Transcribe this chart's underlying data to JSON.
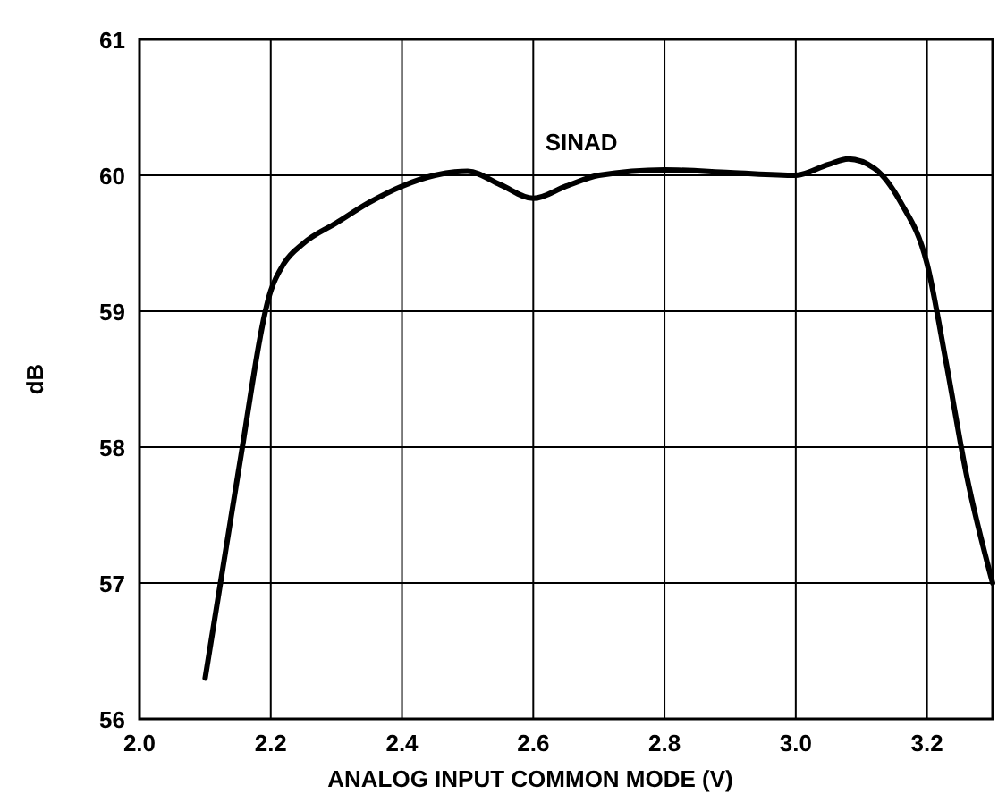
{
  "chart_data": {
    "type": "line",
    "xlabel": "ANALOG INPUT COMMON MODE (V)",
    "ylabel": "dB",
    "xlim": [
      2.0,
      3.3
    ],
    "xticks": [
      {
        "value": 2.0,
        "label": "2.0"
      },
      {
        "value": 2.2,
        "label": "2.2"
      },
      {
        "value": 2.4,
        "label": "2.4"
      },
      {
        "value": 2.6,
        "label": "2.6"
      },
      {
        "value": 2.8,
        "label": "2.8"
      },
      {
        "value": 3.0,
        "label": "3.0"
      },
      {
        "value": 3.2,
        "label": "3.2"
      }
    ],
    "ylim": [
      56,
      61
    ],
    "yticks": [
      56,
      57,
      58,
      59,
      60,
      61
    ],
    "grid": true,
    "legend": false,
    "series": [
      {
        "name": "SINAD",
        "color": "#000000",
        "x": [
          2.1,
          2.15,
          2.2,
          2.22,
          2.25,
          2.3,
          2.35,
          2.4,
          2.45,
          2.5,
          2.55,
          2.6,
          2.65,
          2.7,
          2.8,
          2.9,
          3.0,
          3.05,
          3.08,
          3.12,
          3.16,
          3.2,
          3.23,
          3.26,
          3.3
        ],
        "values": [
          56.3,
          57.8,
          59.15,
          59.35,
          59.5,
          59.65,
          59.8,
          59.92,
          60.0,
          60.03,
          59.93,
          59.83,
          59.92,
          60.0,
          60.04,
          60.02,
          60.0,
          60.08,
          60.12,
          60.05,
          59.8,
          59.35,
          58.6,
          57.8,
          57.0
        ]
      }
    ]
  }
}
